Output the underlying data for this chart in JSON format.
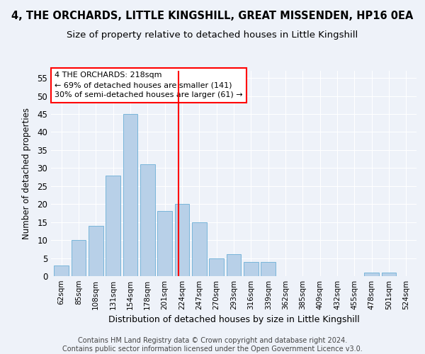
{
  "title": "4, THE ORCHARDS, LITTLE KINGSHILL, GREAT MISSENDEN, HP16 0EA",
  "subtitle": "Size of property relative to detached houses in Little Kingshill",
  "xlabel": "Distribution of detached houses by size in Little Kingshill",
  "ylabel": "Number of detached properties",
  "categories": [
    "62sqm",
    "85sqm",
    "108sqm",
    "131sqm",
    "154sqm",
    "178sqm",
    "201sqm",
    "224sqm",
    "247sqm",
    "270sqm",
    "293sqm",
    "316sqm",
    "339sqm",
    "362sqm",
    "385sqm",
    "409sqm",
    "432sqm",
    "455sqm",
    "478sqm",
    "501sqm",
    "524sqm"
  ],
  "values": [
    3,
    10,
    14,
    28,
    45,
    31,
    18,
    20,
    15,
    5,
    6,
    4,
    4,
    0,
    0,
    0,
    0,
    0,
    1,
    1,
    0
  ],
  "bar_color": "#b8d0e8",
  "bar_edge_color": "#6aaed6",
  "vline_color": "red",
  "annotation_text": "4 THE ORCHARDS: 218sqm\n← 69% of detached houses are smaller (141)\n30% of semi-detached houses are larger (61) →",
  "annotation_box_color": "white",
  "annotation_box_edgecolor": "red",
  "ylim": [
    0,
    57
  ],
  "yticks": [
    0,
    5,
    10,
    15,
    20,
    25,
    30,
    35,
    40,
    45,
    50,
    55
  ],
  "footer": "Contains HM Land Registry data © Crown copyright and database right 2024.\nContains public sector information licensed under the Open Government Licence v3.0.",
  "bg_color": "#eef2f9",
  "grid_color": "#ffffff",
  "title_fontsize": 10.5,
  "subtitle_fontsize": 9.5,
  "bar_width": 0.85
}
